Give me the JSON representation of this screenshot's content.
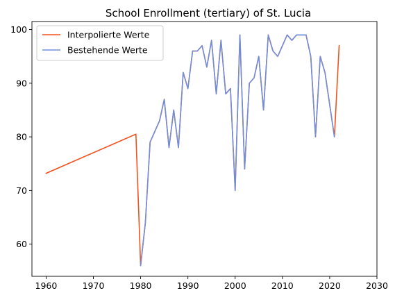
{
  "chart_data": {
    "type": "line",
    "title": "School Enrollment (tertiary) of St. Lucia",
    "xlabel": "",
    "ylabel": "",
    "xlim": [
      1957,
      2030
    ],
    "ylim": [
      54,
      101.5
    ],
    "xticks": [
      1960,
      1970,
      1980,
      1990,
      2000,
      2010,
      2020,
      2030
    ],
    "yticks": [
      60,
      70,
      80,
      90,
      100
    ],
    "grid": false,
    "legend_position": "top-left",
    "series": [
      {
        "name": "Interpolierte Werte",
        "color": "#f4511e",
        "x": [
          1960,
          1979,
          1980,
          1981,
          1982,
          1984,
          1985,
          1986,
          1987,
          1988,
          1989,
          1990,
          1991,
          1992,
          1993,
          1994,
          1995,
          1996,
          1997,
          1998,
          1999,
          2000,
          2001,
          2002,
          2003,
          2004,
          2005,
          2006,
          2007,
          2008,
          2009,
          2010,
          2011,
          2012,
          2013,
          2014,
          2015,
          2016,
          2017,
          2018,
          2019,
          2020,
          2021,
          2022
        ],
        "y": [
          73.2,
          80.5,
          56,
          64,
          79,
          83,
          87,
          78,
          85,
          78,
          92,
          89,
          96,
          96,
          97,
          93,
          98,
          88,
          98,
          88,
          89,
          70,
          99,
          74,
          90,
          91,
          95,
          85,
          99,
          96,
          95,
          97,
          99,
          98,
          99,
          99,
          99,
          95,
          80,
          95,
          92,
          86,
          80,
          97
        ]
      },
      {
        "name": "Bestehende Werte",
        "color": "#6f8fdc",
        "x": [
          1980,
          1981,
          1982,
          1984,
          1985,
          1986,
          1987,
          1988,
          1989,
          1990,
          1991,
          1992,
          1993,
          1994,
          1995,
          1996,
          1997,
          1998,
          1999,
          2000,
          2001,
          2002,
          2003,
          2004,
          2005,
          2006,
          2007,
          2008,
          2009,
          2010,
          2011,
          2012,
          2013,
          2014,
          2015,
          2016,
          2017,
          2018,
          2019,
          2020,
          2021
        ],
        "y": [
          56,
          64,
          79,
          83,
          87,
          78,
          85,
          78,
          92,
          89,
          96,
          96,
          97,
          93,
          98,
          88,
          98,
          88,
          89,
          70,
          99,
          74,
          90,
          91,
          95,
          85,
          99,
          96,
          95,
          97,
          99,
          98,
          99,
          99,
          99,
          95,
          80,
          95,
          92,
          86,
          80
        ]
      }
    ]
  }
}
